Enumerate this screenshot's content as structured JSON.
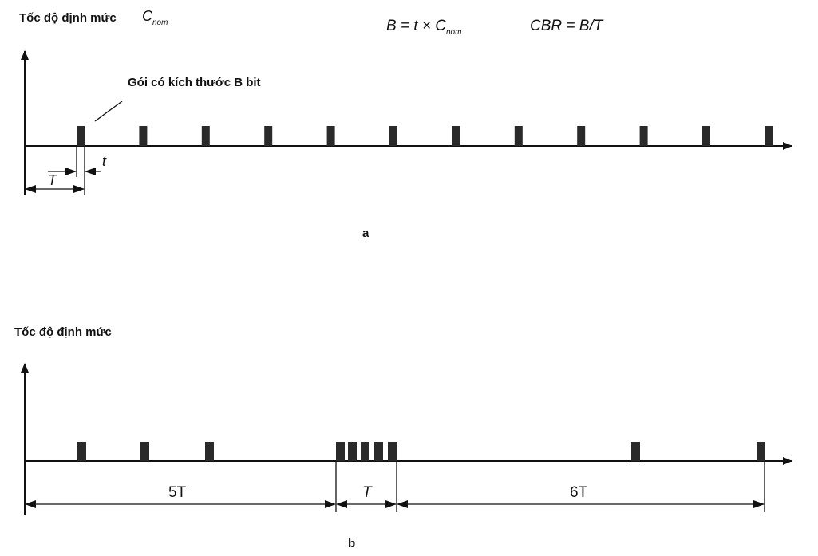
{
  "panel_a": {
    "rate_label": "Tốc độ định mức",
    "c_symbol": "C",
    "c_subscript": "nom",
    "formula_b_left": "B = t × ",
    "formula_b_c": "C",
    "formula_b_sub": "nom",
    "formula_cbr": "CBR = B/T",
    "packet_label": "Gói có kích thước B bit",
    "period_label": "T",
    "duration_label": "t",
    "caption": "a",
    "packet_count": 12
  },
  "panel_b": {
    "rate_label": "Tốc độ định mức",
    "interval_1": "5T",
    "interval_2": "T",
    "interval_3": "6T",
    "caption": "b",
    "packet_count": 10
  },
  "colors": {
    "ink": "#111111",
    "packet": "#2a2a2a"
  }
}
